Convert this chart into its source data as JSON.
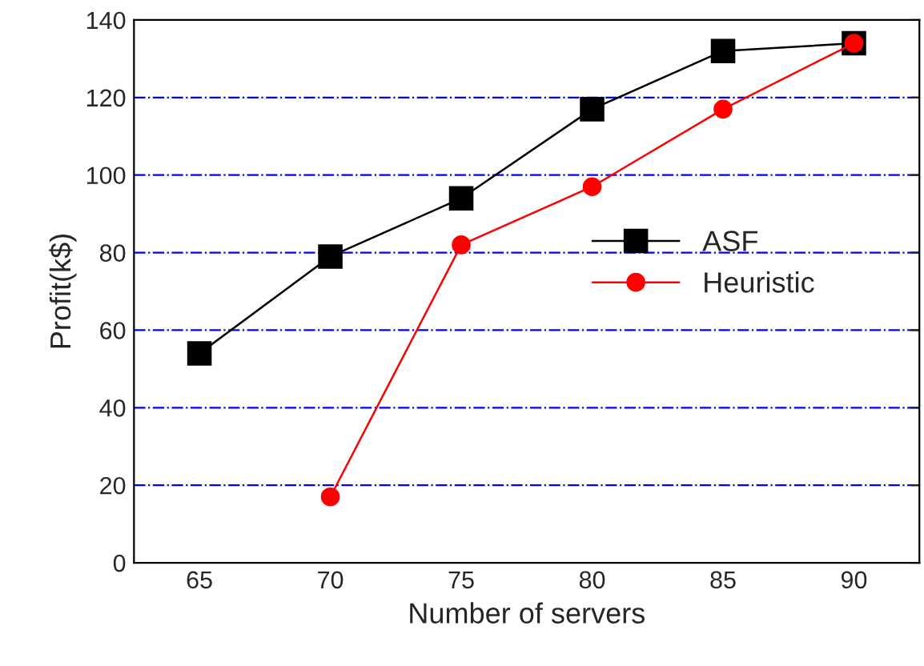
{
  "chart_data": {
    "type": "line",
    "xlabel": "Number of servers",
    "ylabel": "Profit(k$)",
    "x": [
      65,
      70,
      75,
      80,
      85,
      90
    ],
    "series": [
      {
        "name": "ASF",
        "color": "#000000",
        "marker": "square",
        "values": [
          54,
          79,
          94,
          117,
          132,
          134
        ]
      },
      {
        "name": "Heuristic",
        "color": "#ff0000",
        "marker": "circle",
        "values": [
          null,
          17,
          82,
          97,
          117,
          134
        ]
      }
    ],
    "xlim": [
      62.5,
      92.5
    ],
    "xticks": [
      65,
      70,
      75,
      80,
      85,
      90
    ],
    "ylim": [
      0,
      140
    ],
    "yticks": [
      0,
      20,
      40,
      60,
      80,
      100,
      120,
      140
    ],
    "grid": "y",
    "legend": "right",
    "line_style": "solid"
  }
}
